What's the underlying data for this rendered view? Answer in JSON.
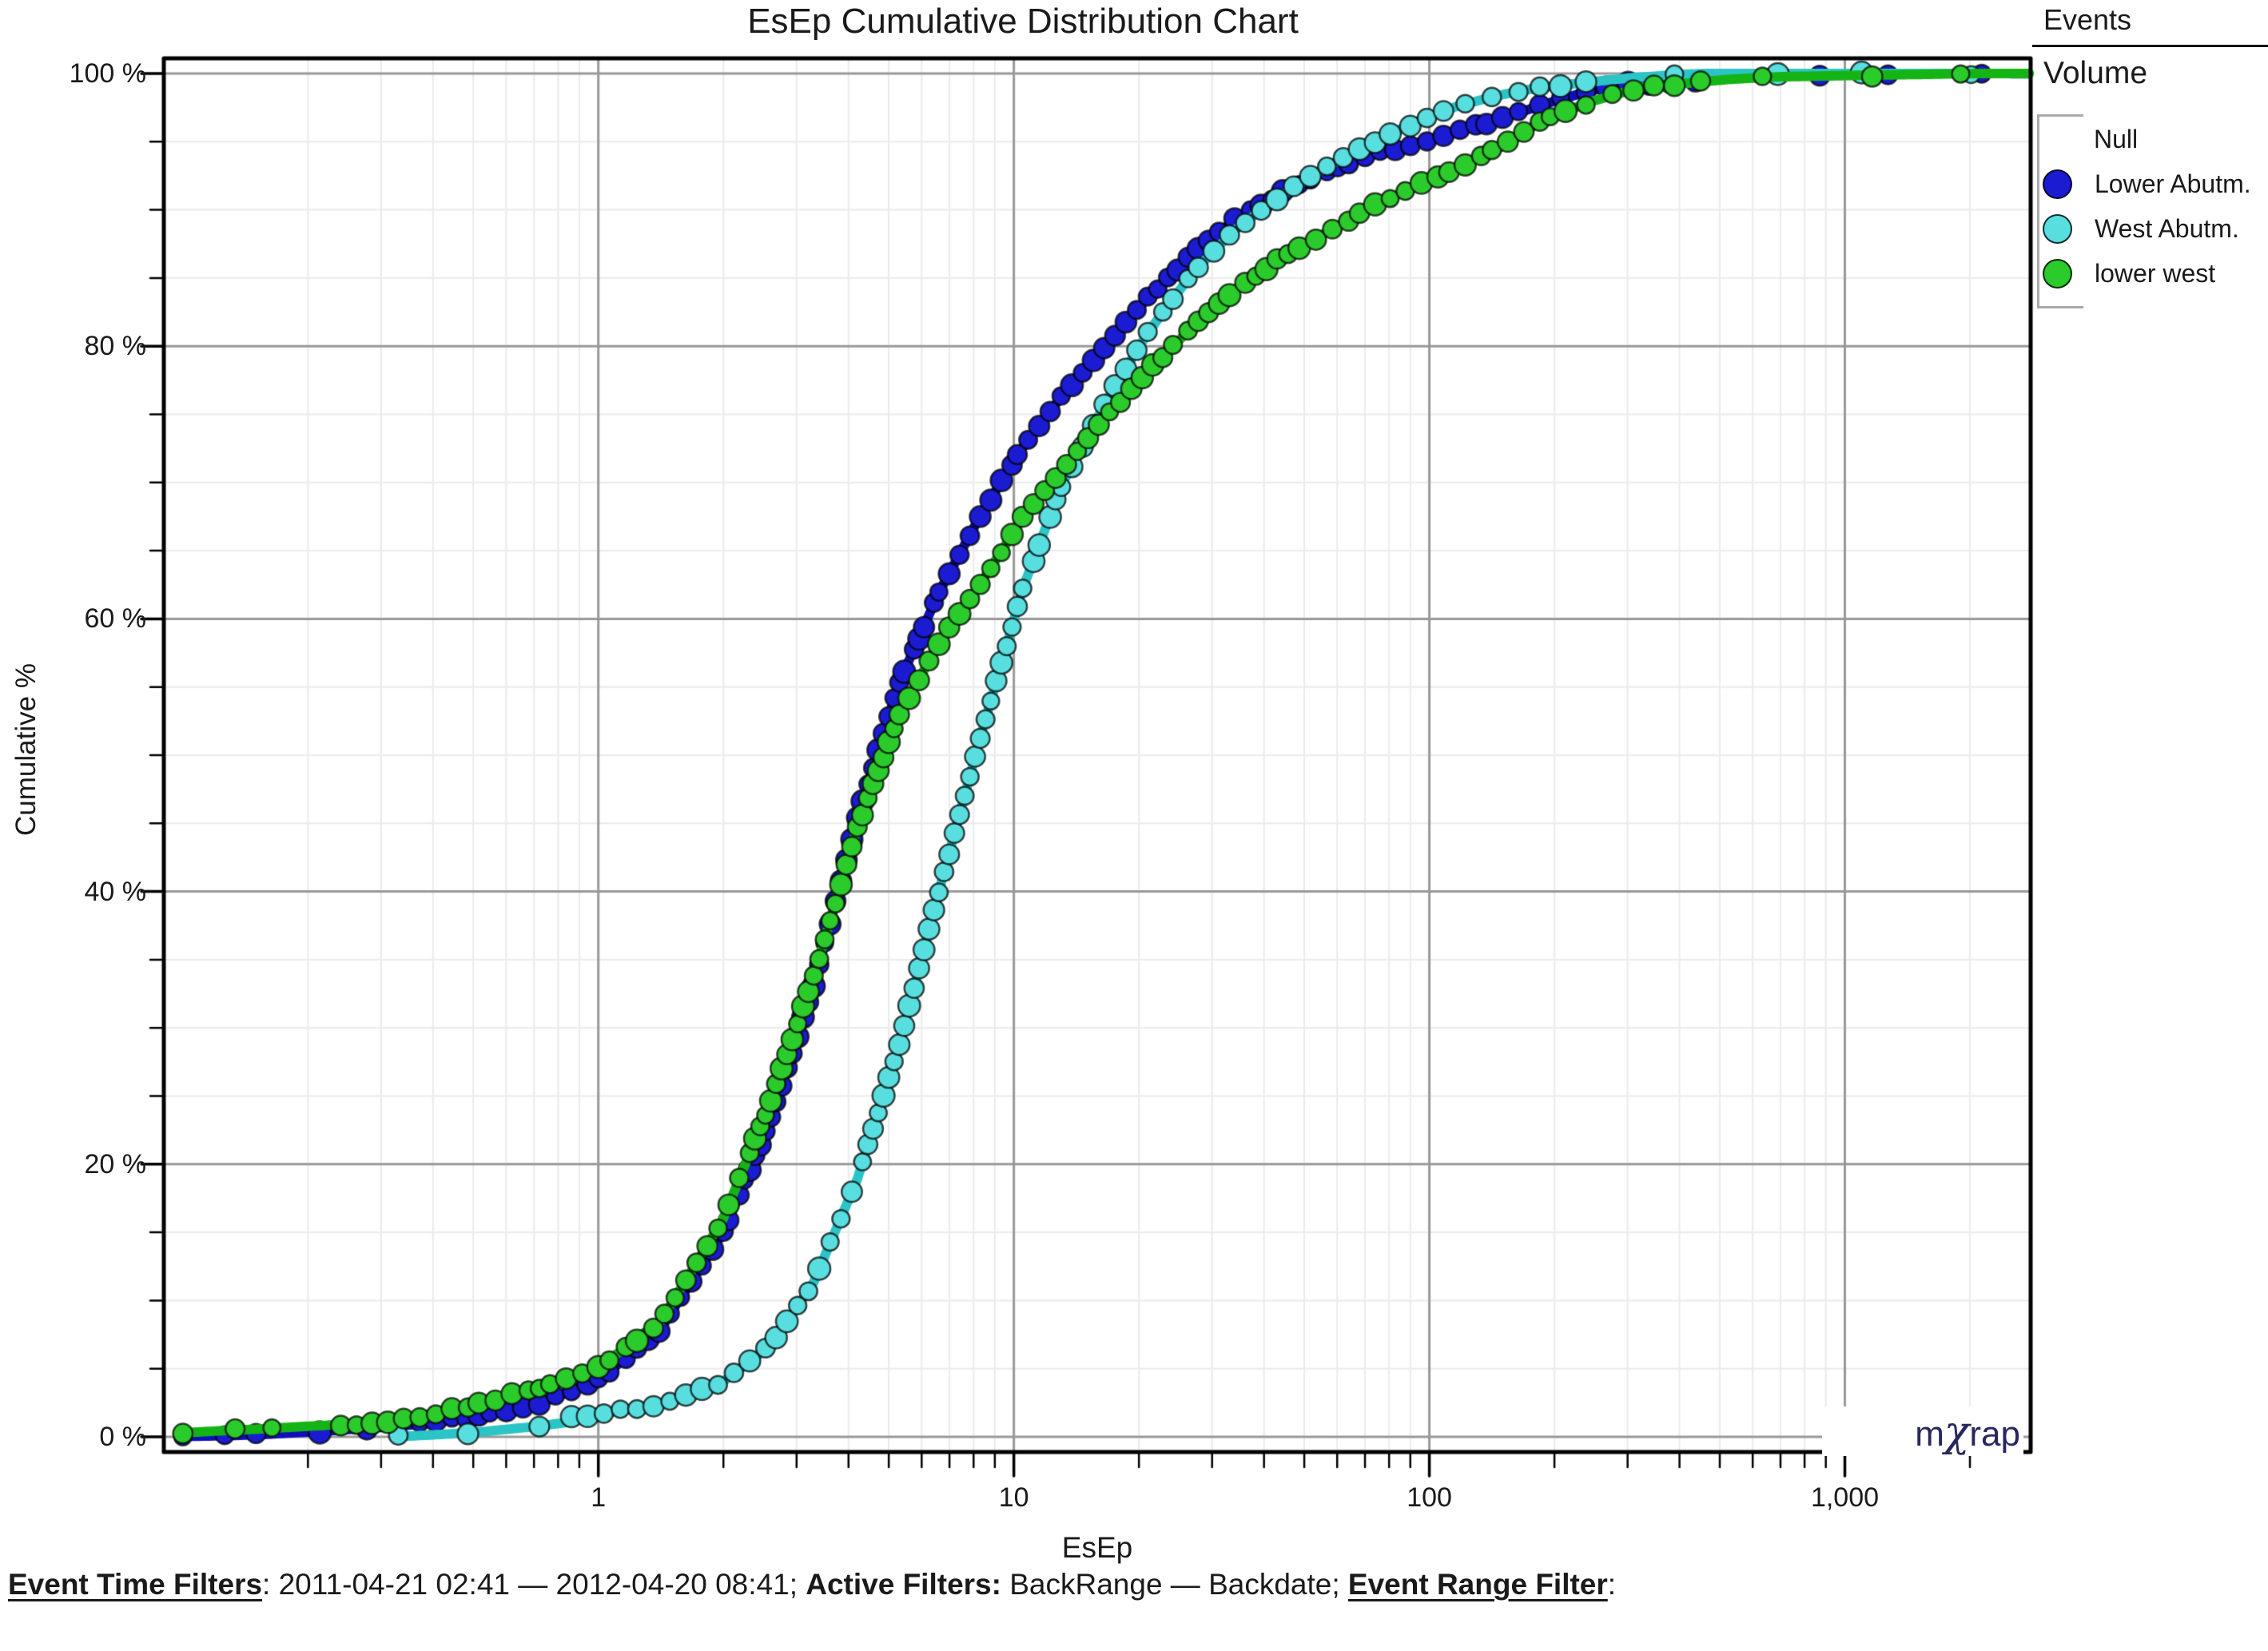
{
  "title": "EsEp Cumulative Distribution Chart",
  "legend": {
    "events_label": "Events",
    "volume_label": "Volume",
    "null_label": "Null"
  },
  "watermark": {
    "m": "m",
    "chi": "χ",
    "rap": "rap",
    "color": "#28285f"
  },
  "caption": {
    "segments": [
      {
        "text": "Event Time Filters",
        "bold": true,
        "underline": true
      },
      {
        "text": ": 2011-04-21 02:41 — 2012-04-20 08:41; ",
        "bold": false,
        "underline": false
      },
      {
        "text": "Active Filters:",
        "bold": true,
        "underline": false
      },
      {
        "text": " BackRange — Backdate; ",
        "bold": false,
        "underline": false
      },
      {
        "text": "Event Range Filter",
        "bold": true,
        "underline": true
      },
      {
        "text": ":",
        "bold": false,
        "underline": false
      }
    ]
  },
  "chart_data": {
    "type": "line",
    "subtype": "cumulative-distribution",
    "title": "EsEp Cumulative Distribution Chart",
    "xlabel": "EsEp",
    "ylabel": "Cumulative %",
    "x_log": true,
    "xlim": [
      0.09,
      2800
    ],
    "ylim": [
      0,
      100
    ],
    "grid": {
      "major_color": "#999999",
      "minor_color": "#ebebeb",
      "y_major_step": 20,
      "y_minor_step": 5
    },
    "x_ticks": [
      {
        "v": 1,
        "label": "1"
      },
      {
        "v": 10,
        "label": "10"
      },
      {
        "v": 100,
        "label": "100"
      },
      {
        "v": 1000,
        "label": "1,000"
      }
    ],
    "y_ticks": [
      {
        "v": 100,
        "label": "100 %"
      },
      {
        "v": 80,
        "label": "80 %"
      },
      {
        "v": 60,
        "label": "60 %"
      },
      {
        "v": 40,
        "label": "40 %"
      },
      {
        "v": 20,
        "label": "20 %"
      },
      {
        "v": 0,
        "label": "0 %"
      }
    ],
    "series": [
      {
        "name": "Lower Abutm.",
        "color": "#1b1bd2",
        "line_color": "#0f0fbe",
        "x": [
          0.1,
          0.15,
          0.22,
          0.33,
          0.5,
          0.7,
          1,
          1.4,
          2,
          2.6,
          3.3,
          4.2,
          5.3,
          6.6,
          8.3,
          10.5,
          13,
          17,
          21,
          27,
          34,
          43,
          55,
          70,
          90,
          115,
          150,
          190,
          245,
          310,
          400,
          520,
          670,
          870,
          1130,
          1470,
          1900,
          2400,
          2750
        ],
        "y": [
          0.05,
          0.2,
          0.45,
          0.75,
          1.3,
          2.3,
          4.1,
          7.4,
          14.5,
          23,
          33,
          45.5,
          55.5,
          62,
          67.5,
          72.5,
          76.3,
          80.7,
          84,
          87.3,
          89.6,
          91.2,
          92.7,
          93.9,
          94.9,
          95.9,
          96.9,
          97.7,
          98.4,
          98.9,
          99.3,
          99.6,
          99.8,
          99.9,
          99.95,
          100,
          100,
          100,
          100
        ]
      },
      {
        "name": "West Abutm.",
        "color": "#58dede",
        "line_color": "#2bc4c7",
        "x": [
          0.33,
          0.5,
          0.7,
          1,
          1.4,
          2,
          2.6,
          3.3,
          4.2,
          5.3,
          6.6,
          8.3,
          10.5,
          13,
          17,
          21,
          27,
          34,
          43,
          55,
          70,
          90,
          115,
          150,
          190,
          245,
          310,
          400,
          520,
          670,
          870,
          1130,
          1470,
          1900,
          2400
        ],
        "y": [
          0.05,
          0.3,
          0.7,
          1.3,
          2.2,
          4,
          6.5,
          11,
          18.5,
          28.5,
          40,
          51.5,
          62.5,
          70,
          76.5,
          81,
          85.5,
          88.8,
          91.3,
          93.4,
          95,
          96.3,
          97.4,
          98.3,
          99,
          99.4,
          99.7,
          99.9,
          100,
          100,
          100,
          100,
          100,
          100,
          100
        ]
      },
      {
        "name": "lower west",
        "color": "#2acb2a",
        "line_color": "#15b415",
        "x": [
          0.1,
          0.15,
          0.22,
          0.33,
          0.5,
          0.7,
          1,
          1.4,
          2,
          2.6,
          3.3,
          4.2,
          5.3,
          6.6,
          8.3,
          10.5,
          13,
          17,
          21,
          27,
          34,
          43,
          55,
          70,
          90,
          115,
          150,
          190,
          245,
          310,
          400,
          520,
          670,
          870,
          1130,
          1470,
          1900,
          2400,
          2780
        ],
        "y": [
          0.3,
          0.55,
          0.85,
          1.3,
          1.9,
          3,
          4.8,
          8.3,
          16,
          24.5,
          33.5,
          44.5,
          53,
          58.5,
          63,
          67.8,
          71.2,
          75.2,
          78.2,
          81.6,
          84.4,
          86.7,
          88.4,
          90,
          91.3,
          92.7,
          94.4,
          96.6,
          97.9,
          98.7,
          99.2,
          99.5,
          99.7,
          99.8,
          99.9,
          99.95,
          100,
          100,
          100
        ]
      }
    ]
  }
}
